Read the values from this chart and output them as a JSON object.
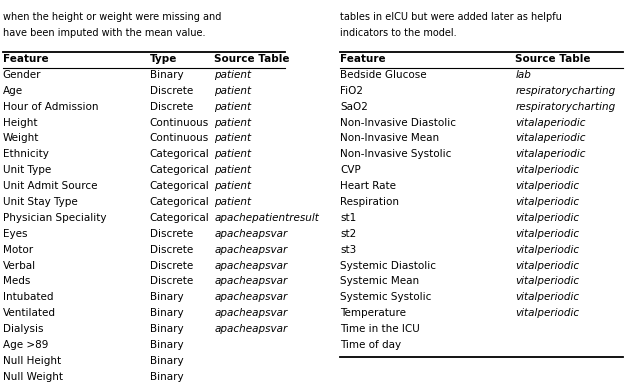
{
  "text_top_left": [
    "when the height or weight were missing and",
    "have been imputed with the mean value."
  ],
  "text_top_right": [
    "tables in eICU but were added later as helpfu",
    "indicators to the model."
  ],
  "left_table": {
    "headers": [
      "Feature",
      "Type",
      "Source Table"
    ],
    "rows": [
      [
        "Gender",
        "Binary",
        "patient"
      ],
      [
        "Age",
        "Discrete",
        "patient"
      ],
      [
        "Hour of Admission",
        "Discrete",
        "patient"
      ],
      [
        "Height",
        "Continuous",
        "patient"
      ],
      [
        "Weight",
        "Continuous",
        "patient"
      ],
      [
        "Ethnicity",
        "Categorical",
        "patient"
      ],
      [
        "Unit Type",
        "Categorical",
        "patient"
      ],
      [
        "Unit Admit Source",
        "Categorical",
        "patient"
      ],
      [
        "Unit Stay Type",
        "Categorical",
        "patient"
      ],
      [
        "Physician Speciality",
        "Categorical",
        "apachepatientresult"
      ],
      [
        "Eyes",
        "Discrete",
        "apacheapsvar"
      ],
      [
        "Motor",
        "Discrete",
        "apacheapsvar"
      ],
      [
        "Verbal",
        "Discrete",
        "apacheapsvar"
      ],
      [
        "Meds",
        "Discrete",
        "apacheapsvar"
      ],
      [
        "Intubated",
        "Binary",
        "apacheapsvar"
      ],
      [
        "Ventilated",
        "Binary",
        "apacheapsvar"
      ],
      [
        "Dialysis",
        "Binary",
        "apacheapsvar"
      ],
      [
        "Age >89",
        "Binary",
        ""
      ],
      [
        "Null Height",
        "Binary",
        ""
      ],
      [
        "Null Weight",
        "Binary",
        ""
      ]
    ]
  },
  "right_table": {
    "headers": [
      "Feature",
      "Source Table"
    ],
    "rows": [
      [
        "Bedside Glucose",
        "lab"
      ],
      [
        "FiO2",
        "respiratorycharting"
      ],
      [
        "SaO2",
        "respiratorycharting"
      ],
      [
        "Non-Invasive Diastolic",
        "vitalaperiodic"
      ],
      [
        "Non-Invasive Mean",
        "vitalaperiodic"
      ],
      [
        "Non-Invasive Systolic",
        "vitalaperiodic"
      ],
      [
        "CVP",
        "vitalperiodic"
      ],
      [
        "Heart Rate",
        "vitalperiodic"
      ],
      [
        "Respiration",
        "vitalperiodic"
      ],
      [
        "st1",
        "vitalperiodic"
      ],
      [
        "st2",
        "vitalperiodic"
      ],
      [
        "st3",
        "vitalperiodic"
      ],
      [
        "Systemic Diastolic",
        "vitalperiodic"
      ],
      [
        "Systemic Mean",
        "vitalperiodic"
      ],
      [
        "Systemic Systolic",
        "vitalperiodic"
      ],
      [
        "Temperature",
        "vitalperiodic"
      ],
      [
        "Time in the ICU",
        ""
      ],
      [
        "Time of day",
        ""
      ]
    ]
  },
  "font_size": 7.5,
  "header_font_size": 7.5,
  "bg_color": "#ffffff"
}
